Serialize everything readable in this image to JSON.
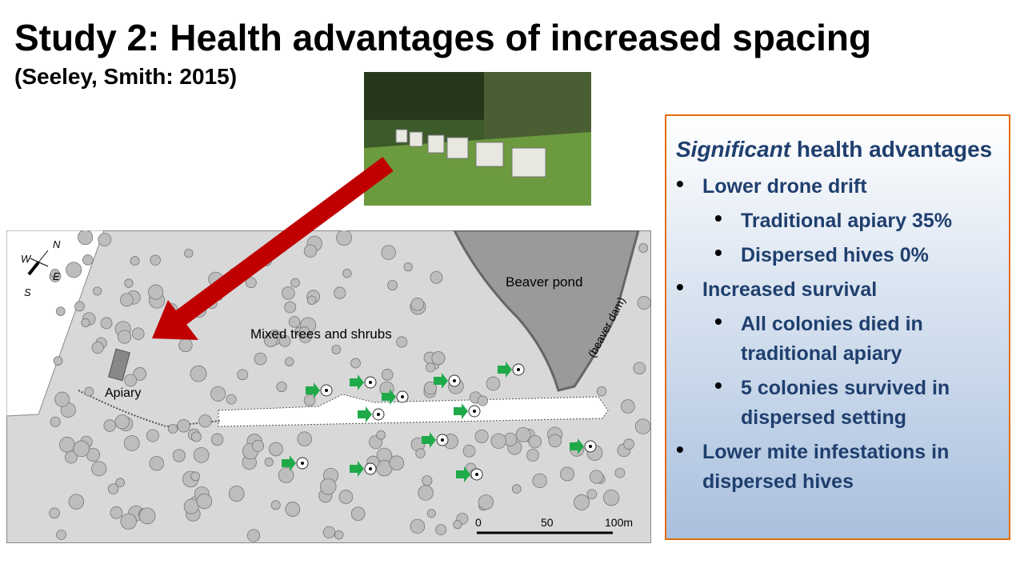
{
  "title": "Study 2: Health advantages of increased spacing",
  "subtitle": "(Seeley, Smith: 2015)",
  "map": {
    "north": "N",
    "west": "W",
    "east": "E",
    "south": "S",
    "pond": "Beaver pond",
    "dam": "(beaver dam)",
    "trees": "Mixed trees and shrubs",
    "apiary": "Apiary",
    "scale": [
      "0",
      "50",
      "100m"
    ]
  },
  "box": {
    "heading_em": "Significant",
    "heading_rest": "health advantages",
    "items": [
      {
        "text": "Lower drone drift",
        "level": 1
      },
      {
        "text": "Traditional apiary 35%",
        "level": 2
      },
      {
        "text": "Dispersed hives 0%",
        "level": 2
      },
      {
        "text": "Increased survival",
        "level": 1
      },
      {
        "text": "All colonies died in traditional apiary",
        "level": 2
      },
      {
        "text": "5 colonies survived in dispersed setting",
        "level": 2
      },
      {
        "text": "Lower mite infestations in dispersed hives",
        "level": 1
      }
    ]
  }
}
